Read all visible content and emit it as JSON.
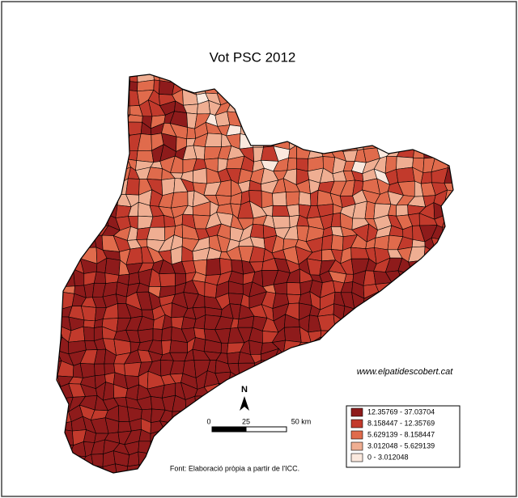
{
  "title": "Vot PSC 2012",
  "website": "www.elpatidescobert.cat",
  "north": "N",
  "scale": {
    "labels": [
      "0",
      "25",
      "50 km"
    ]
  },
  "legend": [
    {
      "label": "12.35769 - 37.03704",
      "color": "#8e1b1b"
    },
    {
      "label": "8.158447 - 12.35769",
      "color": "#c23a2c"
    },
    {
      "label": "5.629139 - 8.158447",
      "color": "#e06b4c"
    },
    {
      "label": "3.012048 - 5.629139",
      "color": "#efae92"
    },
    {
      "label": "0 - 3.012048",
      "color": "#fbe9de"
    }
  ],
  "source": "Font: Elaboració pròpia a partir de l'ICC."
}
